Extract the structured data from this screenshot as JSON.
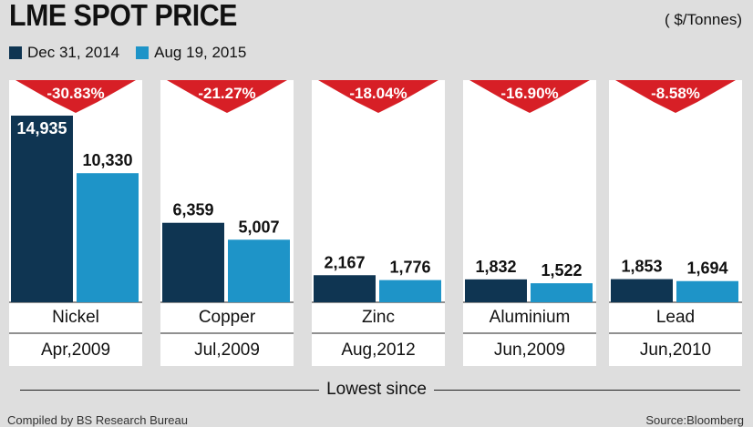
{
  "header": {
    "title": "LME SPOT PRICE",
    "units": "( $/Tonnes)"
  },
  "legend": {
    "items": [
      {
        "label": "Dec 31, 2014",
        "color": "#0f3552"
      },
      {
        "label": "Aug 19, 2015",
        "color": "#1e94c8"
      }
    ]
  },
  "chart_data": {
    "type": "bar",
    "categories": [
      "Nickel",
      "Copper",
      "Zinc",
      "Aluminium",
      "Lead"
    ],
    "series": [
      {
        "name": "Dec 31, 2014",
        "values": [
          14935,
          6359,
          2167,
          1832,
          1853
        ],
        "labels": [
          "14,935",
          "6,359",
          "2,167",
          "1,832",
          "1,853"
        ],
        "color": "#0f3552"
      },
      {
        "name": "Aug 19, 2015",
        "values": [
          10330,
          5007,
          1776,
          1522,
          1694
        ],
        "labels": [
          "10,330",
          "5,007",
          "1,776",
          "1,522",
          "1,694"
        ],
        "color": "#1e94c8"
      }
    ],
    "change_labels": [
      "-30.83%",
      "-21.27%",
      "-18.04%",
      "-16.90%",
      "-8.58%"
    ],
    "lowest_since": [
      "Apr,2009",
      "Jul,2009",
      "Aug,2012",
      "Jun,2009",
      "Jun,2010"
    ],
    "ylim": [
      0,
      14935
    ],
    "arrow_color": "#d71f26"
  },
  "lowest_label": "Lowest since",
  "footer": {
    "left": "Compiled by BS Research Bureau",
    "right": "Source:Bloomberg"
  }
}
